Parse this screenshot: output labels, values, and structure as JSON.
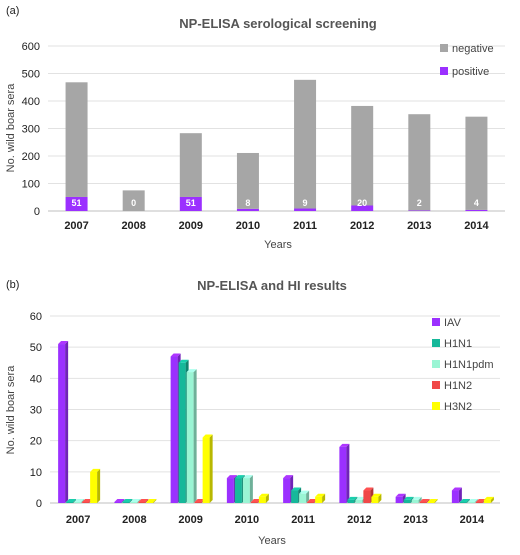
{
  "chart_data": [
    {
      "panel_label": "(a)",
      "type": "bar",
      "stacked": true,
      "title": "NP-ELISA serological screening",
      "xlabel": "Years",
      "ylabel": "No. wild boar sera",
      "ylim": [
        0,
        600
      ],
      "yticks": [
        0,
        100,
        200,
        300,
        400,
        500,
        600
      ],
      "categories": [
        "2007",
        "2008",
        "2009",
        "2010",
        "2011",
        "2012",
        "2013",
        "2014"
      ],
      "series": [
        {
          "name": "negative",
          "color": "#a6a6a6",
          "values": [
            417,
            75,
            232,
            203,
            468,
            362,
            350,
            339
          ]
        },
        {
          "name": "positive",
          "color": "#9b30ff",
          "values": [
            51,
            0,
            51,
            8,
            9,
            20,
            2,
            4
          ]
        }
      ],
      "bar_labels": [
        "51",
        "0",
        "51",
        "8",
        "9",
        "20",
        "2",
        "4"
      ],
      "legend": "top-right",
      "grid": true
    },
    {
      "panel_label": "(b)",
      "type": "bar",
      "title": "NP-ELISA and HI results",
      "xlabel": "Years",
      "ylabel": "No. wild boar sera",
      "ylim": [
        0,
        60
      ],
      "yticks": [
        0,
        10,
        20,
        30,
        40,
        50,
        60
      ],
      "categories": [
        "2007",
        "2008",
        "2009",
        "2010",
        "2011",
        "2012",
        "2013",
        "2014"
      ],
      "series": [
        {
          "name": "IAV",
          "color": "#9b30ff",
          "values": [
            51,
            0,
            47,
            8,
            8,
            18,
            2,
            4
          ]
        },
        {
          "name": "H1N1",
          "color": "#16b89a",
          "values": [
            0,
            0,
            45,
            8,
            4,
            1,
            1,
            0
          ]
        },
        {
          "name": "H1N1pdm",
          "color": "#9af5d4",
          "values": [
            0,
            0,
            42,
            8,
            3,
            1,
            1,
            0
          ]
        },
        {
          "name": "H1N2",
          "color": "#f04848",
          "values": [
            0,
            0,
            0,
            0,
            0,
            4,
            0,
            0
          ]
        },
        {
          "name": "H3N2",
          "color": "#ffff00",
          "values": [
            10,
            0,
            21,
            2,
            2,
            2,
            0,
            1
          ]
        }
      ],
      "legend": "top-right",
      "grid": true
    }
  ]
}
